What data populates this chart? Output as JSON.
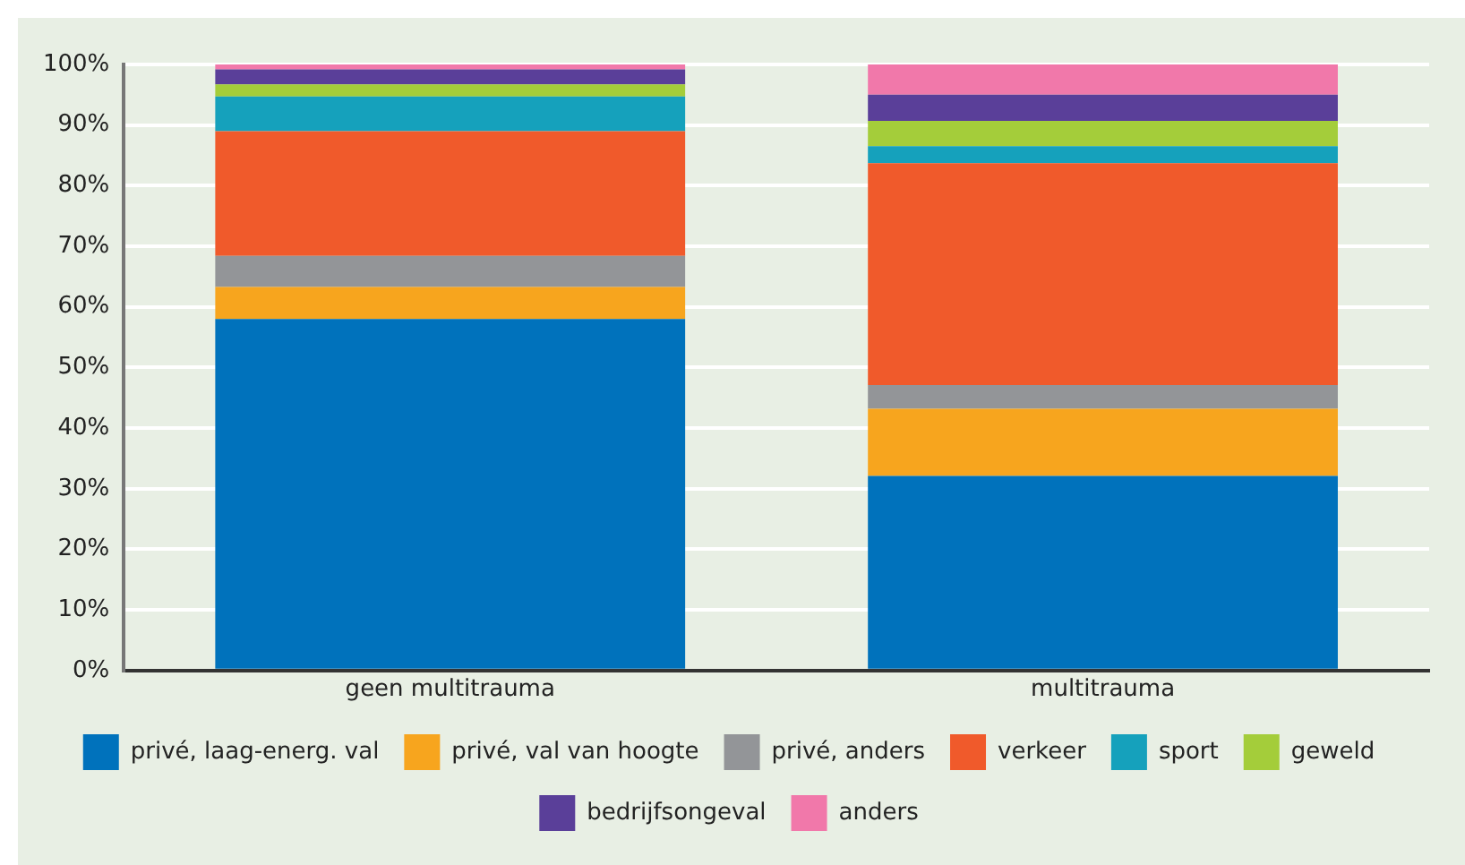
{
  "chart_data": {
    "type": "bar",
    "stacked": true,
    "categories": [
      "geen multitrauma",
      "multitrauma"
    ],
    "series": [
      {
        "name": "privé, laag-energ. val",
        "color": "#0072bc",
        "values": [
          58,
          32.1
        ]
      },
      {
        "name": "privé, val van hoogte",
        "color": "#f7a51e",
        "values": [
          5.3,
          11.1
        ]
      },
      {
        "name": "privé, anders",
        "color": "#939598",
        "values": [
          5.1,
          3.9
        ]
      },
      {
        "name": "verkeer",
        "color": "#f05a2b",
        "values": [
          20.6,
          36.6
        ]
      },
      {
        "name": "sport",
        "color": "#15a1bc",
        "values": [
          5.7,
          2.8
        ]
      },
      {
        "name": "geweld",
        "color": "#a4cd3a",
        "values": [
          2,
          4.2
        ]
      },
      {
        "name": "bedrijfsongeval",
        "color": "#5a3f99",
        "values": [
          2.5,
          4.3
        ]
      },
      {
        "name": "anders",
        "color": "#f178aa",
        "values": [
          0.8,
          5
        ]
      }
    ],
    "ylim": [
      0,
      100
    ],
    "yticks": [
      {
        "value": 0,
        "label": "0%"
      },
      {
        "value": 10,
        "label": "10%"
      },
      {
        "value": 20,
        "label": "20%"
      },
      {
        "value": 30,
        "label": "30%"
      },
      {
        "value": 40,
        "label": "40%"
      },
      {
        "value": 50,
        "label": "50%"
      },
      {
        "value": 60,
        "label": "60%"
      },
      {
        "value": 70,
        "label": "70%"
      },
      {
        "value": 80,
        "label": "80%"
      },
      {
        "value": 90,
        "label": "90%"
      },
      {
        "value": 100,
        "label": "100%"
      }
    ],
    "grid": "y",
    "legend": "bottom"
  }
}
